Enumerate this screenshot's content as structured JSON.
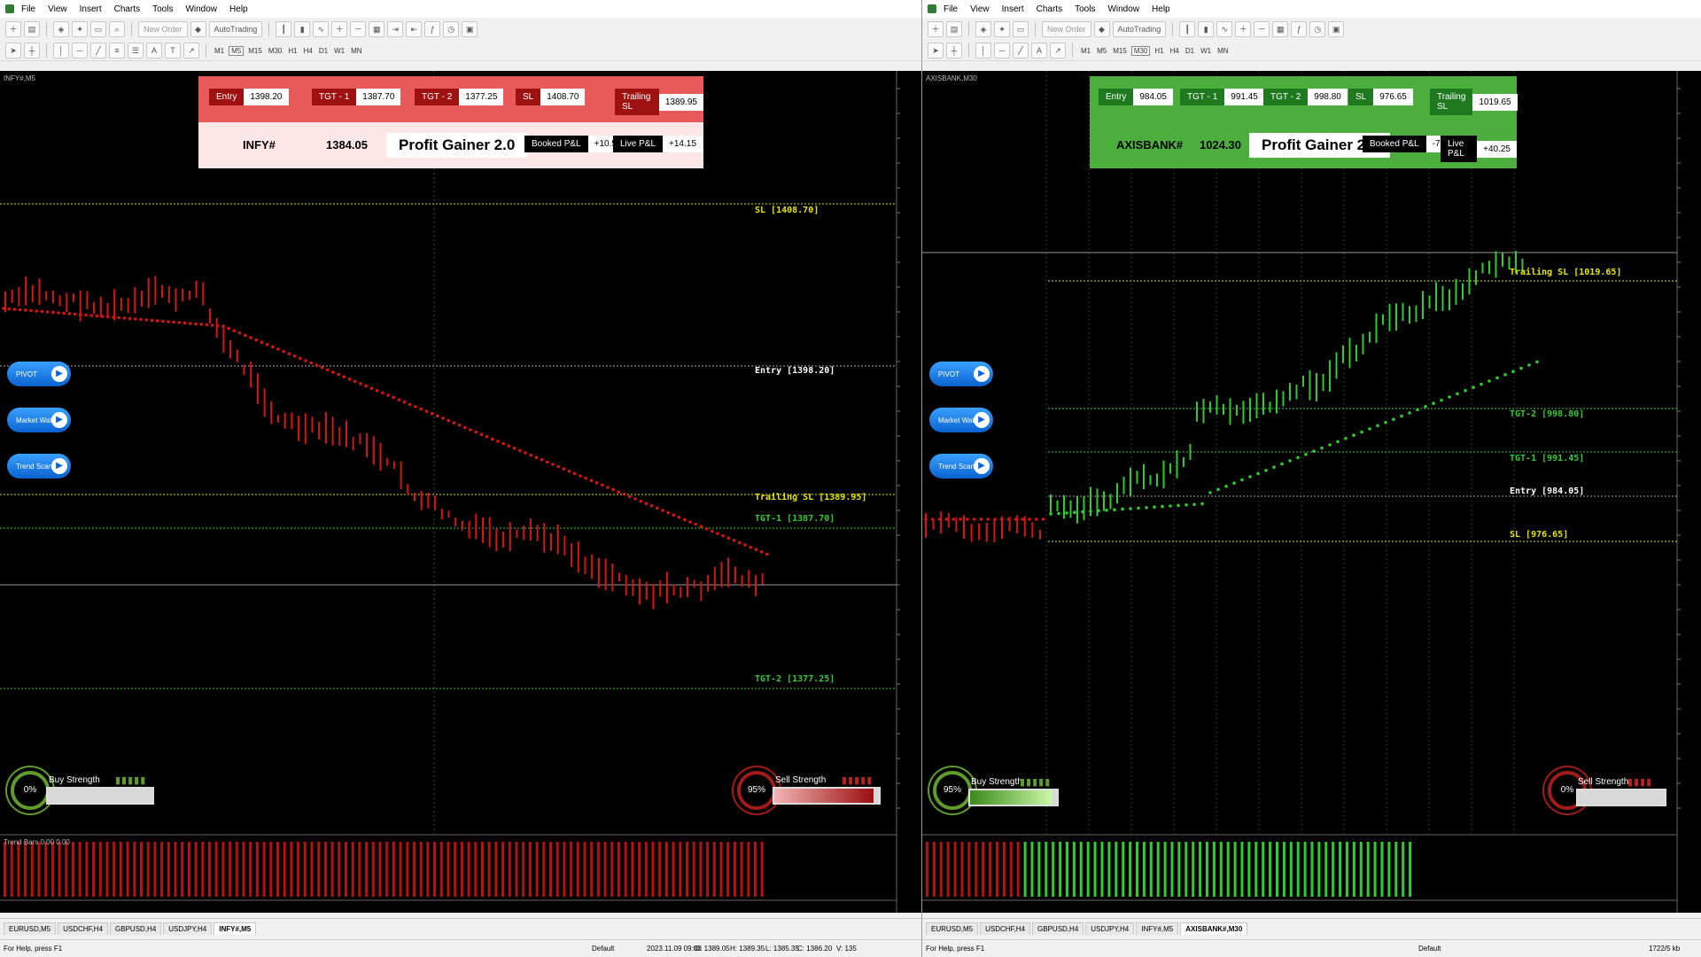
{
  "menu": [
    "File",
    "View",
    "Insert",
    "Charts",
    "Tools",
    "Window",
    "Help"
  ],
  "toolbar": {
    "new_order": "New Order",
    "autotrading": "AutoTrading"
  },
  "timeframes": [
    "M1",
    "M5",
    "M15",
    "M30",
    "H1",
    "H4",
    "D1",
    "W1",
    "MN"
  ],
  "left": {
    "symbol_label": "INFY#,M5",
    "panel": {
      "entry_label": "Entry",
      "entry_value": "1398.20",
      "tgt1_label": "TGT - 1",
      "tgt1_value": "1387.70",
      "tgt2_label": "TGT - 2",
      "tgt2_value": "1377.25",
      "sl_label": "SL",
      "sl_value": "1408.70",
      "tsl_label": "Trailing SL",
      "tsl_value": "1389.95",
      "symbol": "INFY#",
      "price": "1384.05",
      "brand": "Profit Gainer 2.0",
      "booked_label": "Booked P&L",
      "booked_value": "+10.50",
      "live_label": "Live P&L",
      "live_value": "+14.15"
    },
    "levels": {
      "sl": "SL [1408.70]",
      "entry": "Entry [1398.20]",
      "tsl": "Trailing SL [1389.95]",
      "tgt1": "TGT-1 [1387.70]",
      "tgt2": "TGT-2 [1377.25]"
    },
    "buttons": [
      "PIVOT",
      "Market Watch",
      "Trend Scanner"
    ],
    "buy": {
      "label": "Buy Strength",
      "pct": "0%",
      "level": 0
    },
    "sell": {
      "label": "Sell Strength",
      "pct": "95%",
      "level": 0.95
    },
    "indicator_label": "Trend Bars 0.00 0.00",
    "tabs": [
      "EURUSD,M5",
      "USDCHF,H4",
      "GBPUSD,H4",
      "USDJPY,H4",
      "INFY#,M5"
    ],
    "active_tab": 4,
    "status": {
      "help": "For Help, press F1",
      "profile": "Default",
      "time": "2023.11.09 09:00",
      "o": "O: 1389.05",
      "h": "H: 1389.35",
      "l": "L: 1385.35",
      "c": "C: 1386.20",
      "v": "V: 135"
    }
  },
  "right": {
    "symbol_label": "AXISBANK,M30",
    "panel": {
      "entry_label": "Entry",
      "entry_value": "984.05",
      "tgt1_label": "TGT - 1",
      "tgt1_value": "991.45",
      "tgt2_label": "TGT - 2",
      "tgt2_value": "998.80",
      "sl_label": "SL",
      "sl_value": "976.65",
      "tsl_label": "Trailing SL",
      "tsl_value": "1019.65",
      "symbol": "AXISBANK#",
      "price": "1024.30",
      "brand": "Profit Gainer 2.0",
      "booked_label": "Booked P&L",
      "booked_value": "-7.40",
      "live_label": "Live P&L",
      "live_value": "+40.25"
    },
    "levels": {
      "tsl": "Trailing SL [1019.65]",
      "tgt2": "TGT-2 [998.80]",
      "tgt1": "TGT-1 [991.45]",
      "entry": "Entry [984.05]",
      "sl": "SL [976.65]"
    },
    "buttons": [
      "PIVOT",
      "Market Watch",
      "Trend Scanner"
    ],
    "buy": {
      "label": "Buy Strength",
      "pct": "95%",
      "level": 0.95
    },
    "sell": {
      "label": "Sell Strength",
      "pct": "0%",
      "level": 0
    },
    "tabs": [
      "EURUSD,M5",
      "USDCHF,H4",
      "GBPUSD,H4",
      "USDJPY,H4",
      "INFY#,M5",
      "AXISBANK#,M30"
    ],
    "active_tab": 5,
    "status": {
      "help": "For Help, press F1",
      "profile": "Default",
      "traffic": "1722/5 kb"
    }
  },
  "colors": {
    "bear": "#d81414",
    "bull": "#2ecc2e",
    "sl_line": "#e6e600",
    "tgt_line": "#33cc33",
    "panel_red": "#e85a5a",
    "panel_green": "#4caf3d"
  }
}
